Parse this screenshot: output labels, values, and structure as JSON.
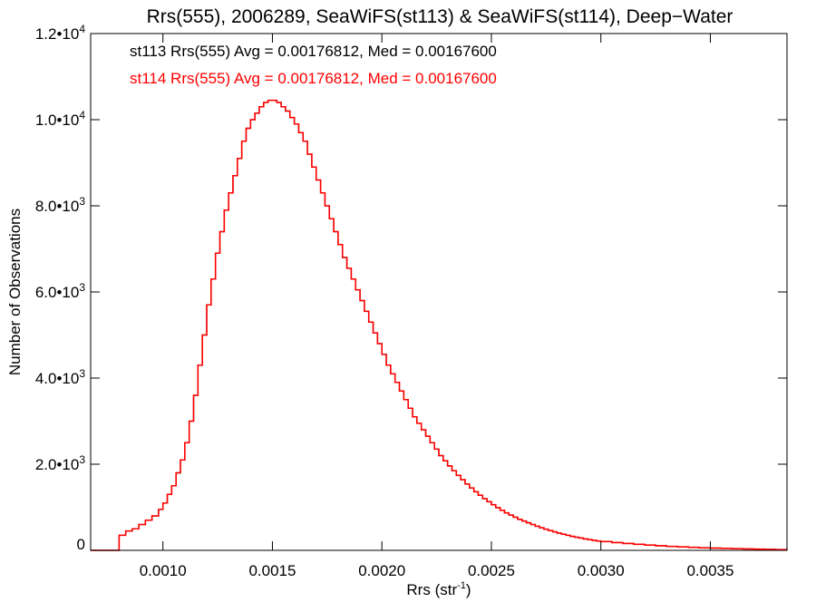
{
  "chart_data": {
    "type": "histogram",
    "title": "Rrs(555), 2006289, SeaWiFS(st113) & SeaWiFS(st114), Deep−Water",
    "xlabel": "Rrs (str",
    "xlabel_sup": "-1",
    "xlabel_end": ")",
    "ylabel": "Number of Observations",
    "xlim": [
      0.00067,
      0.00385
    ],
    "ylim": [
      0,
      12000
    ],
    "grid": false,
    "x_ticks": [
      {
        "value": 0.001,
        "label": "0.0010"
      },
      {
        "value": 0.0015,
        "label": "0.0015"
      },
      {
        "value": 0.002,
        "label": "0.0020"
      },
      {
        "value": 0.0025,
        "label": "0.0025"
      },
      {
        "value": 0.003,
        "label": "0.0030"
      },
      {
        "value": 0.0035,
        "label": "0.0035"
      }
    ],
    "y_ticks": [
      {
        "value": 0,
        "base": "0",
        "exp": ""
      },
      {
        "value": 2000,
        "base": "2.0•10",
        "exp": "3"
      },
      {
        "value": 4000,
        "base": "4.0•10",
        "exp": "3"
      },
      {
        "value": 6000,
        "base": "6.0•10",
        "exp": "3"
      },
      {
        "value": 8000,
        "base": "8.0•10",
        "exp": "3"
      },
      {
        "value": 10000,
        "base": "1.0•10",
        "exp": "4"
      },
      {
        "value": 12000,
        "base": "1.2•10",
        "exp": "4"
      }
    ],
    "annotations": [
      {
        "text": "st113 Rrs(555) Avg = 0.00176812, Med = 0.00167600",
        "color": "#000000"
      },
      {
        "text": "st114 Rrs(555) Avg = 0.00176812, Med = 0.00167600",
        "color": "#ff0000"
      }
    ],
    "series": [
      {
        "name": "st113",
        "color": "#000000",
        "points": [
          [
            0.00067,
            0
          ],
          [
            0.0008,
            0
          ],
          [
            0.0008,
            350
          ],
          [
            0.00083,
            450
          ],
          [
            0.00086,
            500
          ],
          [
            0.00089,
            600
          ],
          [
            0.00092,
            700
          ],
          [
            0.00095,
            800
          ],
          [
            0.00098,
            950
          ],
          [
            0.001,
            1100
          ],
          [
            0.00102,
            1300
          ],
          [
            0.00104,
            1500
          ],
          [
            0.00106,
            1800
          ],
          [
            0.00108,
            2100
          ],
          [
            0.0011,
            2500
          ],
          [
            0.00112,
            3000
          ],
          [
            0.00114,
            3600
          ],
          [
            0.00116,
            4300
          ],
          [
            0.00118,
            5000
          ],
          [
            0.0012,
            5700
          ],
          [
            0.00122,
            6300
          ],
          [
            0.00124,
            6900
          ],
          [
            0.00126,
            7400
          ],
          [
            0.00128,
            7900
          ],
          [
            0.0013,
            8300
          ],
          [
            0.00132,
            8700
          ],
          [
            0.00134,
            9100
          ],
          [
            0.00136,
            9500
          ],
          [
            0.00138,
            9800
          ],
          [
            0.0014,
            10000
          ],
          [
            0.00142,
            10150
          ],
          [
            0.00144,
            10300
          ],
          [
            0.00146,
            10400
          ],
          [
            0.00148,
            10450
          ],
          [
            0.0015,
            10450
          ],
          [
            0.00152,
            10400
          ],
          [
            0.00154,
            10300
          ],
          [
            0.00156,
            10200
          ],
          [
            0.00158,
            10050
          ],
          [
            0.0016,
            9900
          ],
          [
            0.00162,
            9700
          ],
          [
            0.00164,
            9500
          ],
          [
            0.00166,
            9200
          ],
          [
            0.00168,
            8900
          ],
          [
            0.0017,
            8600
          ],
          [
            0.00172,
            8300
          ],
          [
            0.00174,
            8000
          ],
          [
            0.00176,
            7700
          ],
          [
            0.00178,
            7400
          ],
          [
            0.0018,
            7100
          ],
          [
            0.00182,
            6800
          ],
          [
            0.00184,
            6550
          ],
          [
            0.00186,
            6300
          ],
          [
            0.00188,
            6050
          ],
          [
            0.0019,
            5800
          ],
          [
            0.00192,
            5550
          ],
          [
            0.00194,
            5300
          ],
          [
            0.00196,
            5050
          ],
          [
            0.00198,
            4800
          ],
          [
            0.002,
            4550
          ],
          [
            0.00202,
            4300
          ],
          [
            0.00204,
            4100
          ],
          [
            0.00206,
            3900
          ],
          [
            0.00208,
            3700
          ],
          [
            0.0021,
            3500
          ],
          [
            0.00212,
            3300
          ],
          [
            0.00214,
            3100
          ],
          [
            0.00216,
            2950
          ],
          [
            0.00218,
            2800
          ],
          [
            0.0022,
            2650
          ],
          [
            0.00222,
            2500
          ],
          [
            0.00224,
            2350
          ],
          [
            0.00226,
            2200
          ],
          [
            0.00228,
            2080
          ],
          [
            0.0023,
            1960
          ],
          [
            0.00232,
            1850
          ],
          [
            0.00234,
            1740
          ],
          [
            0.00236,
            1640
          ],
          [
            0.00238,
            1540
          ],
          [
            0.0024,
            1450
          ],
          [
            0.00242,
            1360
          ],
          [
            0.00244,
            1280
          ],
          [
            0.00246,
            1200
          ],
          [
            0.00248,
            1130
          ],
          [
            0.0025,
            1060
          ],
          [
            0.00252,
            990
          ],
          [
            0.00254,
            930
          ],
          [
            0.00256,
            870
          ],
          [
            0.00258,
            820
          ],
          [
            0.0026,
            770
          ],
          [
            0.00262,
            720
          ],
          [
            0.00264,
            680
          ],
          [
            0.00266,
            640
          ],
          [
            0.00268,
            600
          ],
          [
            0.0027,
            560
          ],
          [
            0.00272,
            525
          ],
          [
            0.00274,
            490
          ],
          [
            0.00276,
            460
          ],
          [
            0.00278,
            430
          ],
          [
            0.0028,
            400
          ],
          [
            0.00282,
            375
          ],
          [
            0.00284,
            350
          ],
          [
            0.00286,
            325
          ],
          [
            0.00288,
            305
          ],
          [
            0.0029,
            285
          ],
          [
            0.00292,
            265
          ],
          [
            0.00294,
            248
          ],
          [
            0.00296,
            232
          ],
          [
            0.00298,
            217
          ],
          [
            0.003,
            203
          ],
          [
            0.00305,
            180
          ],
          [
            0.0031,
            160
          ],
          [
            0.00315,
            140
          ],
          [
            0.0032,
            122
          ],
          [
            0.00325,
            106
          ],
          [
            0.0033,
            92
          ],
          [
            0.00335,
            80
          ],
          [
            0.0034,
            70
          ],
          [
            0.00345,
            60
          ],
          [
            0.0035,
            52
          ],
          [
            0.00355,
            45
          ],
          [
            0.0036,
            38
          ],
          [
            0.00365,
            32
          ],
          [
            0.0037,
            27
          ],
          [
            0.00375,
            22
          ],
          [
            0.0038,
            18
          ],
          [
            0.00385,
            15
          ]
        ]
      },
      {
        "name": "st114",
        "color": "#ff0000",
        "points": [
          [
            0.00067,
            0
          ],
          [
            0.0008,
            0
          ],
          [
            0.0008,
            350
          ],
          [
            0.00083,
            450
          ],
          [
            0.00086,
            500
          ],
          [
            0.00089,
            600
          ],
          [
            0.00092,
            700
          ],
          [
            0.00095,
            800
          ],
          [
            0.00098,
            950
          ],
          [
            0.001,
            1100
          ],
          [
            0.00102,
            1300
          ],
          [
            0.00104,
            1500
          ],
          [
            0.00106,
            1800
          ],
          [
            0.00108,
            2100
          ],
          [
            0.0011,
            2500
          ],
          [
            0.00112,
            3000
          ],
          [
            0.00114,
            3600
          ],
          [
            0.00116,
            4300
          ],
          [
            0.00118,
            5000
          ],
          [
            0.0012,
            5700
          ],
          [
            0.00122,
            6300
          ],
          [
            0.00124,
            6900
          ],
          [
            0.00126,
            7400
          ],
          [
            0.00128,
            7900
          ],
          [
            0.0013,
            8300
          ],
          [
            0.00132,
            8700
          ],
          [
            0.00134,
            9100
          ],
          [
            0.00136,
            9500
          ],
          [
            0.00138,
            9800
          ],
          [
            0.0014,
            10000
          ],
          [
            0.00142,
            10150
          ],
          [
            0.00144,
            10300
          ],
          [
            0.00146,
            10400
          ],
          [
            0.00148,
            10450
          ],
          [
            0.0015,
            10450
          ],
          [
            0.00152,
            10400
          ],
          [
            0.00154,
            10300
          ],
          [
            0.00156,
            10200
          ],
          [
            0.00158,
            10050
          ],
          [
            0.0016,
            9900
          ],
          [
            0.00162,
            9700
          ],
          [
            0.00164,
            9500
          ],
          [
            0.00166,
            9200
          ],
          [
            0.00168,
            8900
          ],
          [
            0.0017,
            8600
          ],
          [
            0.00172,
            8300
          ],
          [
            0.00174,
            8000
          ],
          [
            0.00176,
            7700
          ],
          [
            0.00178,
            7400
          ],
          [
            0.0018,
            7100
          ],
          [
            0.00182,
            6800
          ],
          [
            0.00184,
            6550
          ],
          [
            0.00186,
            6300
          ],
          [
            0.00188,
            6050
          ],
          [
            0.0019,
            5800
          ],
          [
            0.00192,
            5550
          ],
          [
            0.00194,
            5300
          ],
          [
            0.00196,
            5050
          ],
          [
            0.00198,
            4800
          ],
          [
            0.002,
            4550
          ],
          [
            0.00202,
            4300
          ],
          [
            0.00204,
            4100
          ],
          [
            0.00206,
            3900
          ],
          [
            0.00208,
            3700
          ],
          [
            0.0021,
            3500
          ],
          [
            0.00212,
            3300
          ],
          [
            0.00214,
            3100
          ],
          [
            0.00216,
            2950
          ],
          [
            0.00218,
            2800
          ],
          [
            0.0022,
            2650
          ],
          [
            0.00222,
            2500
          ],
          [
            0.00224,
            2350
          ],
          [
            0.00226,
            2200
          ],
          [
            0.00228,
            2080
          ],
          [
            0.0023,
            1960
          ],
          [
            0.00232,
            1850
          ],
          [
            0.00234,
            1740
          ],
          [
            0.00236,
            1640
          ],
          [
            0.00238,
            1540
          ],
          [
            0.0024,
            1450
          ],
          [
            0.00242,
            1360
          ],
          [
            0.00244,
            1280
          ],
          [
            0.00246,
            1200
          ],
          [
            0.00248,
            1130
          ],
          [
            0.0025,
            1060
          ],
          [
            0.00252,
            990
          ],
          [
            0.00254,
            930
          ],
          [
            0.00256,
            870
          ],
          [
            0.00258,
            820
          ],
          [
            0.0026,
            770
          ],
          [
            0.00262,
            720
          ],
          [
            0.00264,
            680
          ],
          [
            0.00266,
            640
          ],
          [
            0.00268,
            600
          ],
          [
            0.0027,
            560
          ],
          [
            0.00272,
            525
          ],
          [
            0.00274,
            490
          ],
          [
            0.00276,
            460
          ],
          [
            0.00278,
            430
          ],
          [
            0.0028,
            400
          ],
          [
            0.00282,
            375
          ],
          [
            0.00284,
            350
          ],
          [
            0.00286,
            325
          ],
          [
            0.00288,
            305
          ],
          [
            0.0029,
            285
          ],
          [
            0.00292,
            265
          ],
          [
            0.00294,
            248
          ],
          [
            0.00296,
            232
          ],
          [
            0.00298,
            217
          ],
          [
            0.003,
            203
          ],
          [
            0.00305,
            180
          ],
          [
            0.0031,
            160
          ],
          [
            0.00315,
            140
          ],
          [
            0.0032,
            122
          ],
          [
            0.00325,
            106
          ],
          [
            0.0033,
            92
          ],
          [
            0.00335,
            80
          ],
          [
            0.0034,
            70
          ],
          [
            0.00345,
            60
          ],
          [
            0.0035,
            52
          ],
          [
            0.00355,
            45
          ],
          [
            0.0036,
            38
          ],
          [
            0.00365,
            32
          ],
          [
            0.0037,
            27
          ],
          [
            0.00375,
            22
          ],
          [
            0.0038,
            18
          ],
          [
            0.00385,
            15
          ]
        ]
      }
    ]
  }
}
